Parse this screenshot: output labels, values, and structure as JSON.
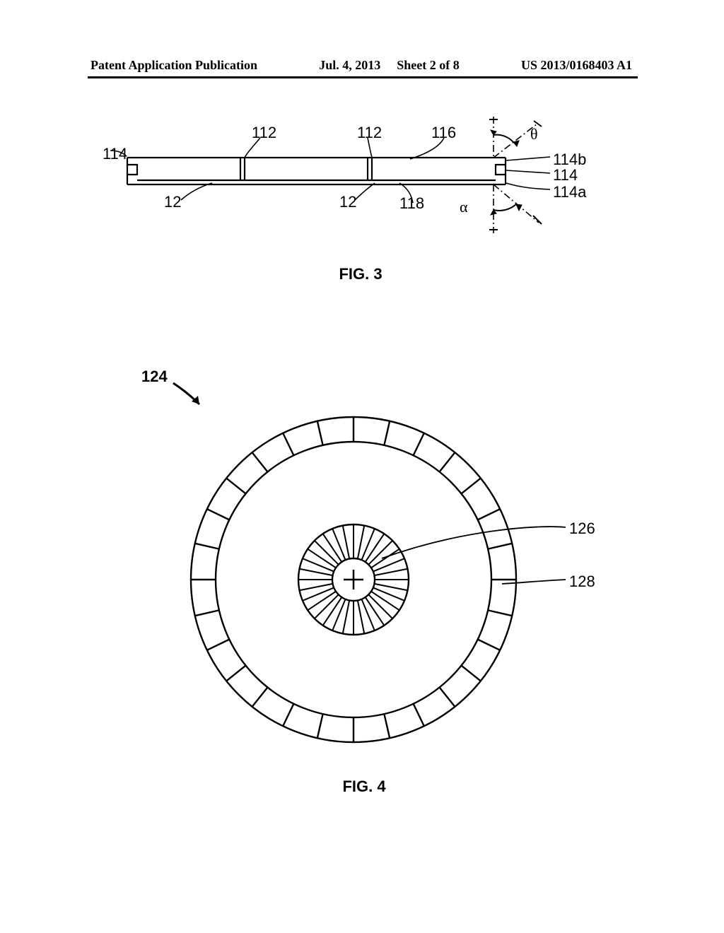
{
  "header": {
    "left": "Patent Application Publication",
    "middle_date": "Jul. 4, 2013",
    "middle_sheet": "Sheet 2 of 8",
    "right": "US 2013/0168403 A1"
  },
  "fig3": {
    "label": "FIG. 3",
    "refs": {
      "r112a": "112",
      "r112b": "112",
      "r114_left": "114",
      "r114_right": "114",
      "r114a": "114a",
      "r114b": "114b",
      "r12a": "12",
      "r12b": "12",
      "r116": "116",
      "r118": "118",
      "theta": "θ",
      "alpha": "α"
    },
    "stroke": "#000000",
    "stroke_width": 2.2
  },
  "fig4": {
    "label": "FIG. 4",
    "refs": {
      "r124": "124",
      "r126": "126",
      "r128": "128"
    },
    "geometry": {
      "outer_r": 230,
      "outer_ring_inner_r": 195,
      "outer_segments": 28,
      "inner_outer_r": 78,
      "inner_inner_r": 30,
      "inner_segments": 32,
      "cross_size": 14
    },
    "stroke": "#000000",
    "stroke_width": 2.4
  }
}
